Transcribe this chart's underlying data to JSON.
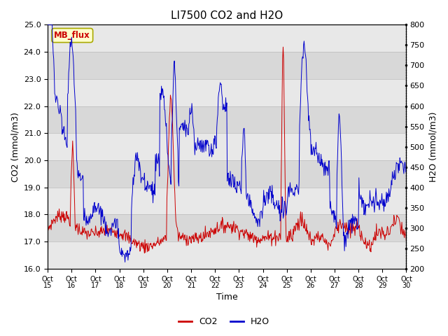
{
  "title": "LI7500 CO2 and H2O",
  "xlabel": "Time",
  "ylabel_left": "CO2 (mmol/m3)",
  "ylabel_right": "H2O (mmol/m3)",
  "co2_ylim": [
    16.0,
    25.0
  ],
  "h2o_ylim": [
    200,
    800
  ],
  "co2_yticks": [
    16.0,
    17.0,
    18.0,
    19.0,
    20.0,
    21.0,
    22.0,
    23.0,
    24.0,
    25.0
  ],
  "h2o_yticks": [
    200,
    250,
    300,
    350,
    400,
    450,
    500,
    550,
    600,
    650,
    700,
    750,
    800
  ],
  "xtick_labels": [
    "Oct\n15",
    "Oct\n16",
    "Oct\n17",
    "Oct\n18",
    "Oct\n19",
    "Oct\n20",
    "Oct\n21",
    "Oct\n22",
    "Oct\n23",
    "Oct\n24",
    "Oct\n25",
    "Oct\n26",
    "Oct\n27",
    "Oct\n28",
    "Oct\n29",
    "Oct\n30"
  ],
  "co2_color": "#cc0000",
  "h2o_color": "#0000cc",
  "legend_co2": "CO2",
  "legend_h2o": "H2O",
  "annotation_text": "MB_flux",
  "annotation_color": "#cc0000",
  "annotation_bg": "#ffffcc",
  "annotation_edge": "#aaaa00",
  "bg_color": "#ffffff",
  "band_colors": [
    "#e8e8e8",
    "#d8d8d8"
  ],
  "grid_color": "#bbbbbb",
  "title_fontsize": 11,
  "axis_fontsize": 9,
  "tick_fontsize": 8
}
